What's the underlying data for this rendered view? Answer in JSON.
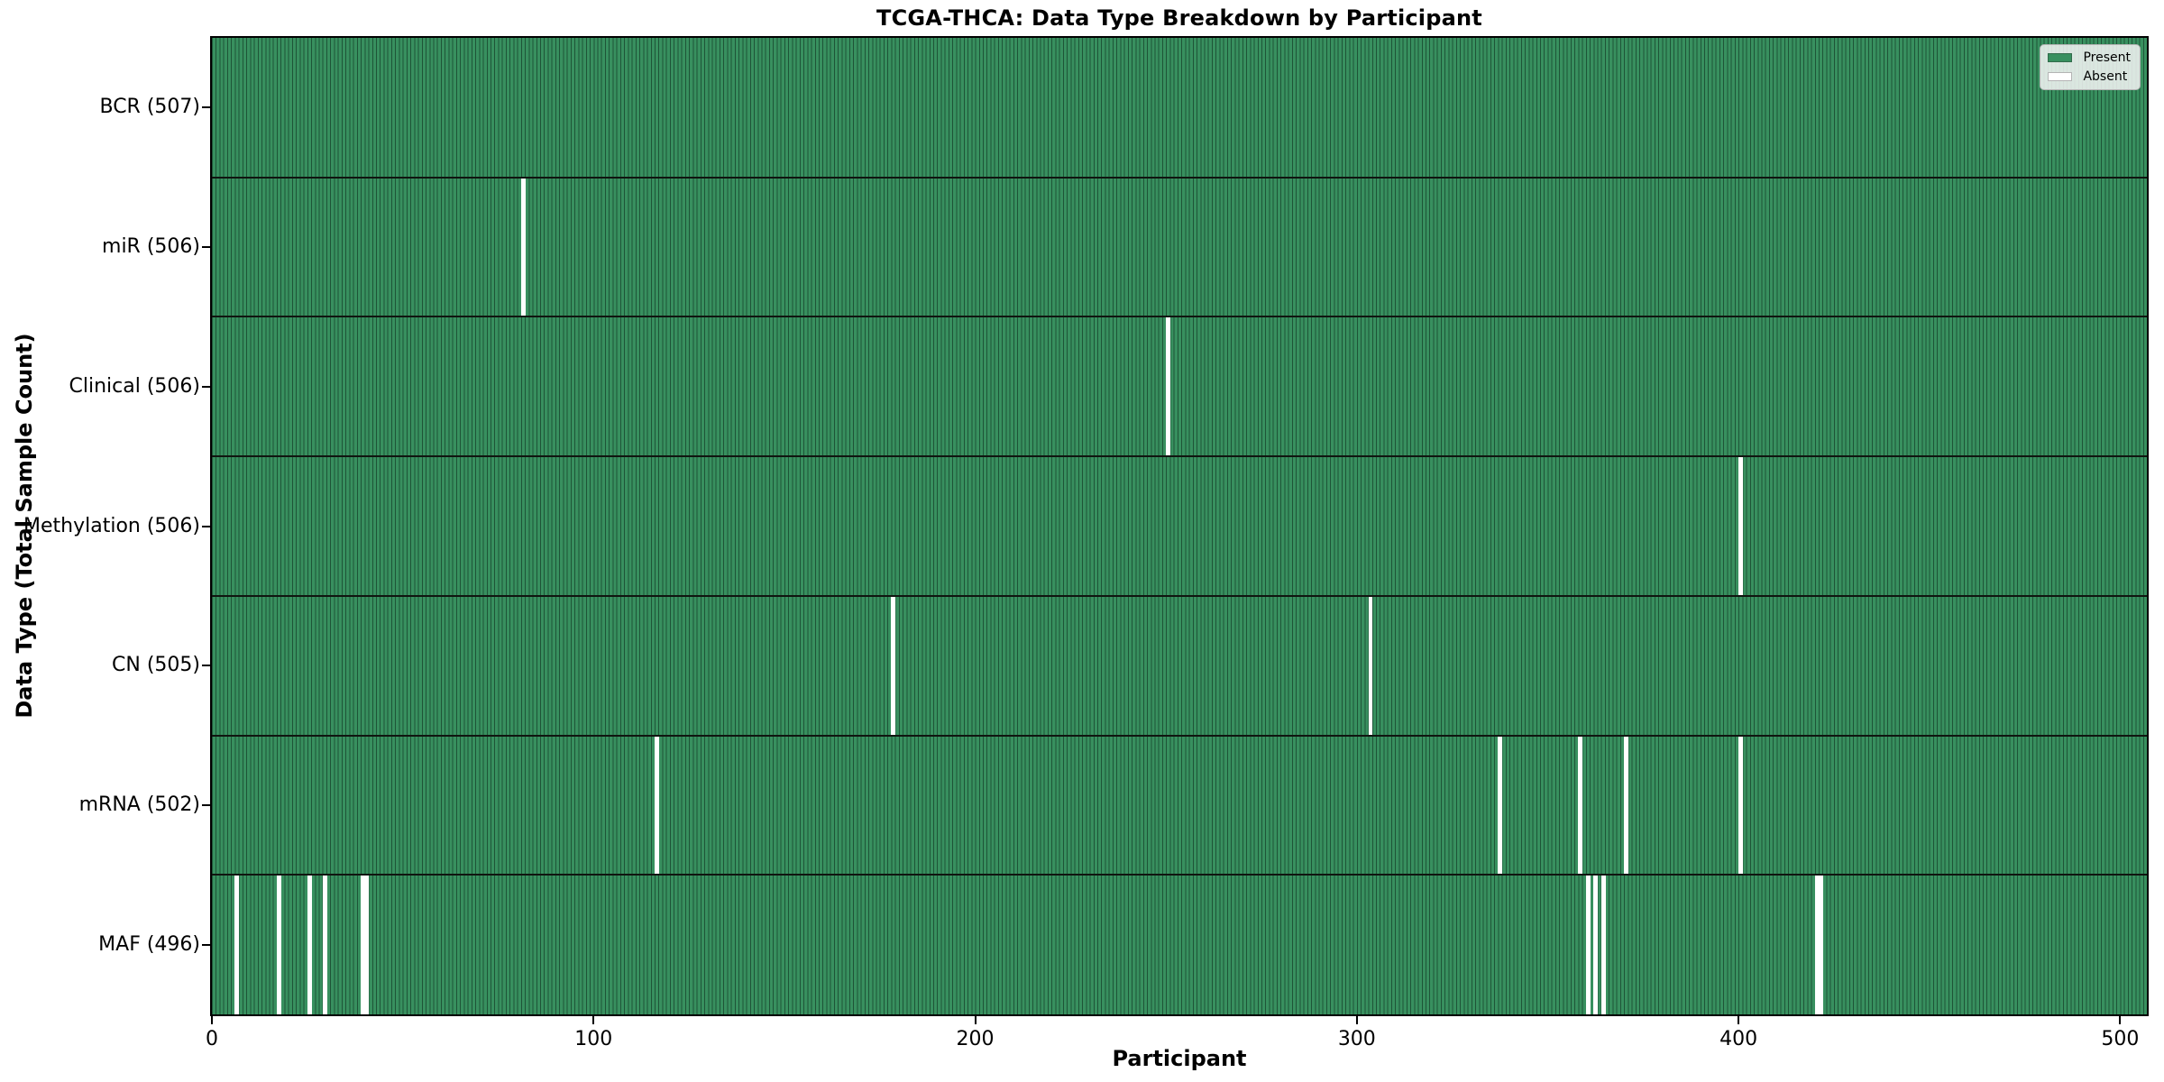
{
  "figure": {
    "title": "TCGA-THCA: Data Type Breakdown by Participant"
  },
  "chart_data": {
    "type": "heatmap",
    "title": "TCGA-THCA: Data Type Breakdown by Participant",
    "xlabel": "Participant",
    "ylabel": "Data Type (Total Sample Count)",
    "x_ticks": [
      "0",
      "100",
      "200",
      "300",
      "400",
      "500"
    ],
    "x_tick_values": [
      0,
      100,
      200,
      300,
      400,
      500
    ],
    "x_range": [
      0,
      507
    ],
    "n_participants": 507,
    "grid": false,
    "legend_position": "upper right",
    "legend": {
      "entries": [
        {
          "label": "Present",
          "color": "#38905F"
        },
        {
          "label": "Absent",
          "color": "#FFFFFF"
        }
      ]
    },
    "rows": [
      {
        "name": "BCR",
        "label": "BCR (507)",
        "total": 507,
        "absent": []
      },
      {
        "name": "miR",
        "label": "miR (506)",
        "total": 506,
        "absent": [
          81
        ]
      },
      {
        "name": "Clinical",
        "label": "Clinical (506)",
        "total": 506,
        "absent": [
          250
        ]
      },
      {
        "name": "Methylation",
        "label": "Methylation (506)",
        "total": 506,
        "absent": [
          400
        ]
      },
      {
        "name": "CN",
        "label": "CN (505)",
        "total": 505,
        "absent": [
          178,
          303
        ]
      },
      {
        "name": "mRNA",
        "label": "mRNA (502)",
        "total": 502,
        "absent": [
          116,
          337,
          358,
          370,
          400
        ]
      },
      {
        "name": "MAF",
        "label": "MAF (496)",
        "total": 496,
        "absent": [
          6,
          17,
          25,
          29,
          39,
          40,
          360,
          362,
          364,
          420,
          421
        ]
      }
    ],
    "colors": {
      "present": "#38905F",
      "absent": "#FFFFFF",
      "bar_edge": "rgba(8,35,22,0.55)",
      "separator": "#101510",
      "axes_border": "#000000"
    }
  }
}
